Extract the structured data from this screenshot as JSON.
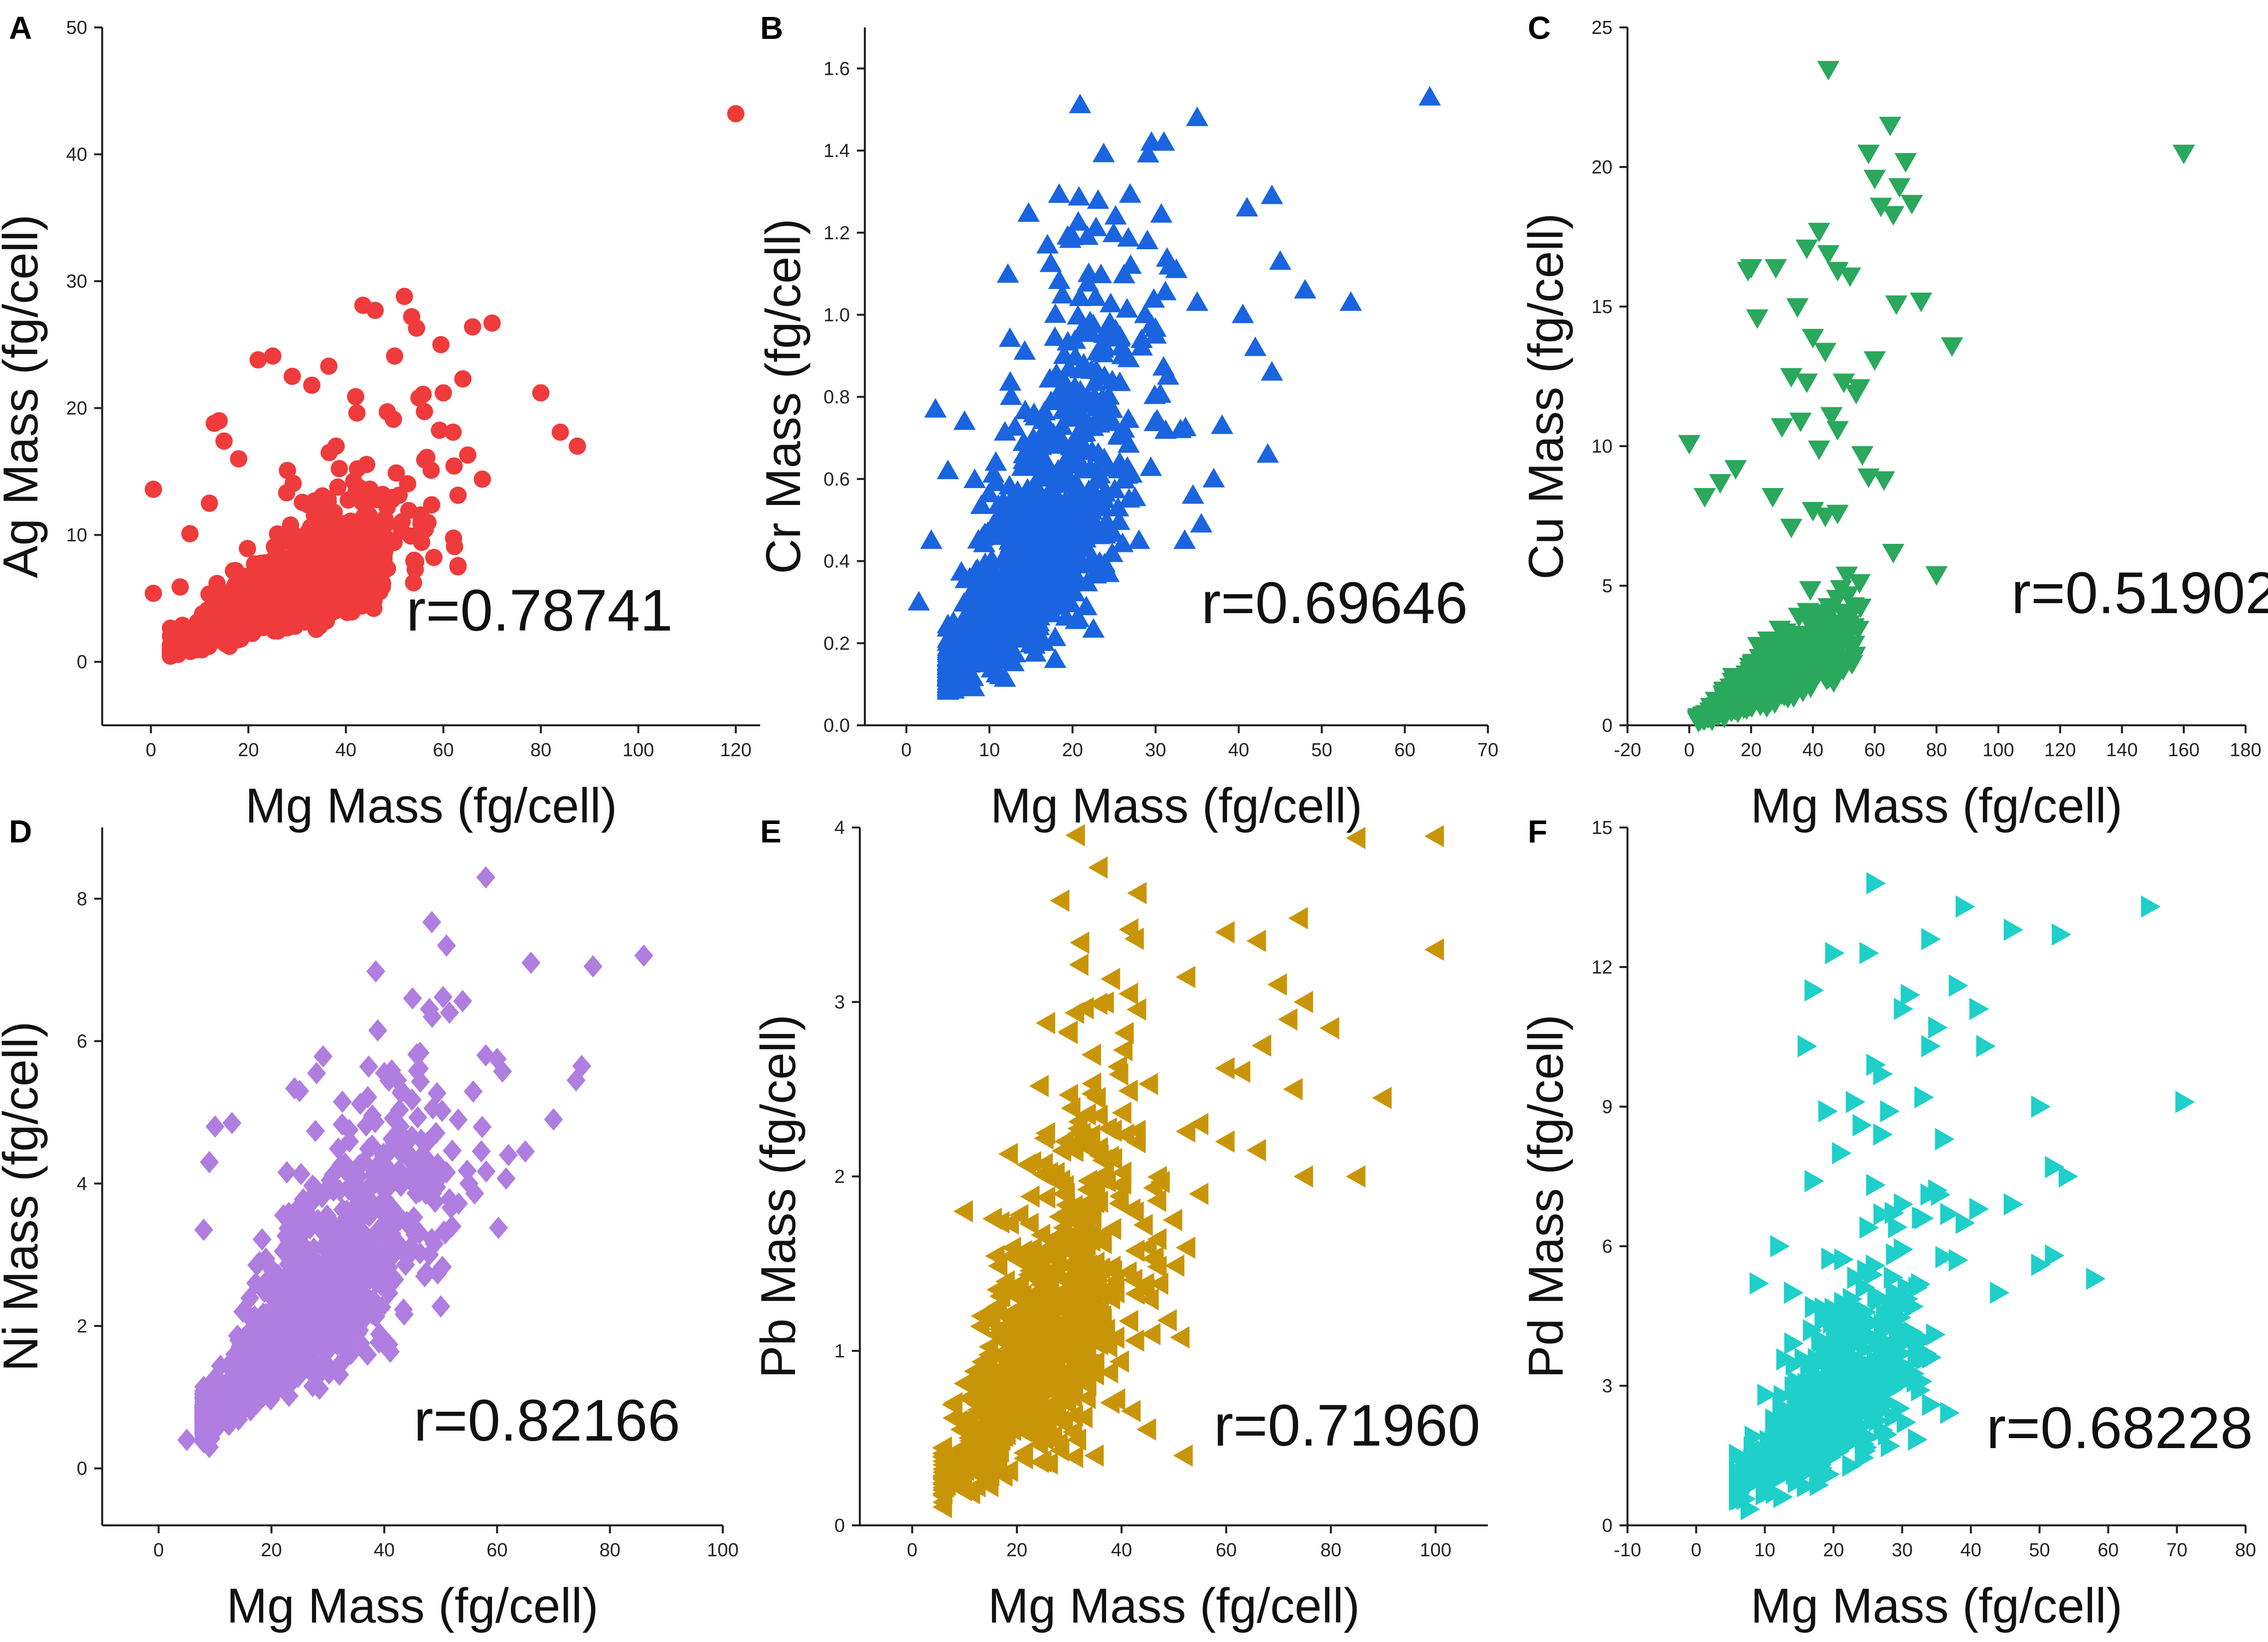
{
  "chart_data": [
    {
      "panel": "A",
      "type": "scatter",
      "marker": "circle",
      "color": "#ef3b3b",
      "xlabel": "Mg Mass (fg/cell)",
      "ylabel": "Ag Mass (fg/cell)",
      "annotation": "r=0.78741",
      "xlim": [
        -10,
        125
      ],
      "ylim": [
        -5,
        50
      ],
      "xticks": [
        0,
        20,
        40,
        60,
        80,
        100,
        120
      ],
      "yticks": [
        0,
        10,
        20,
        30,
        40,
        50
      ],
      "n_points": 1100,
      "slope": 0.2,
      "noise": 0.32,
      "x_range": [
        4,
        60
      ],
      "x_center": 25,
      "seed": 11,
      "points": [
        [
          120,
          43.2
        ],
        [
          87.5,
          17
        ],
        [
          80,
          21.2
        ],
        [
          70,
          26.7
        ],
        [
          66,
          26.4
        ],
        [
          64,
          22.3
        ],
        [
          62,
          18.1
        ],
        [
          59.5,
          25
        ],
        [
          57.5,
          15.1
        ],
        [
          54.5,
          26.3
        ],
        [
          52,
          28.8
        ],
        [
          53.5,
          27.2
        ],
        [
          50,
          24.1
        ],
        [
          48.5,
          19.7
        ],
        [
          43.5,
          28.1
        ],
        [
          46,
          27.7
        ],
        [
          36.5,
          23.3
        ],
        [
          33,
          21.8
        ],
        [
          29,
          22.5
        ],
        [
          25,
          24.1
        ],
        [
          22,
          23.8
        ],
        [
          18,
          16
        ],
        [
          14,
          19
        ],
        [
          13,
          18.8
        ],
        [
          15,
          17.4
        ],
        [
          0.5,
          13.6
        ],
        [
          0.5,
          5.4
        ],
        [
          6,
          5.9
        ],
        [
          8,
          10.1
        ],
        [
          12,
          12.5
        ],
        [
          68,
          14.4
        ],
        [
          84,
          18.1
        ],
        [
          42,
          20.9
        ],
        [
          38,
          17
        ],
        [
          55,
          20.8
        ],
        [
          60,
          21.2
        ],
        [
          65,
          16.3
        ]
      ]
    },
    {
      "panel": "B",
      "type": "scatter",
      "marker": "triangle-up",
      "color": "#1a64e0",
      "xlabel": "Mg Mass (fg/cell)",
      "ylabel": "Cr Mass (fg/cell)",
      "annotation": "r=0.69646",
      "xlim": [
        -5,
        70
      ],
      "ylim": [
        0,
        1.7
      ],
      "xticks": [
        0,
        10,
        20,
        30,
        40,
        50,
        60,
        70
      ],
      "yticks": [
        0.0,
        0.2,
        0.4,
        0.6,
        0.8,
        1.0,
        1.2,
        1.4,
        1.6
      ],
      "n_points": 800,
      "slope": 0.028,
      "noise": 0.36,
      "x_range": [
        5,
        32
      ],
      "x_center": 15,
      "seed": 23,
      "points": [
        [
          63,
          1.53
        ],
        [
          35,
          1.48
        ],
        [
          31,
          1.42
        ],
        [
          29.5,
          1.42
        ],
        [
          41,
          1.26
        ],
        [
          44,
          1.29
        ],
        [
          45,
          1.13
        ],
        [
          48,
          1.06
        ],
        [
          53.5,
          1.03
        ],
        [
          44,
          0.86
        ],
        [
          43.5,
          0.66
        ],
        [
          42,
          0.92
        ],
        [
          40.5,
          1.0
        ],
        [
          38,
          0.73
        ],
        [
          37,
          0.6
        ],
        [
          35.5,
          0.49
        ],
        [
          34.5,
          0.56
        ],
        [
          33.5,
          0.45
        ],
        [
          35,
          1.03
        ],
        [
          32.5,
          1.11
        ],
        [
          29,
          1.18
        ],
        [
          27,
          1.12
        ],
        [
          21,
          0.76
        ],
        [
          24.5,
          0.98
        ],
        [
          20,
          1.19
        ],
        [
          3.5,
          0.77
        ],
        [
          1.5,
          0.3
        ],
        [
          3,
          0.45
        ],
        [
          5,
          0.62
        ],
        [
          7,
          0.74
        ],
        [
          26,
          0.9
        ],
        [
          30,
          0.95
        ],
        [
          31.5,
          0.85
        ],
        [
          33,
          0.72
        ],
        [
          28,
          0.45
        ]
      ]
    },
    {
      "panel": "C",
      "type": "scatter",
      "marker": "triangle-down",
      "color": "#2aa85c",
      "xlabel": "Mg Mass (fg/cell)",
      "ylabel": "Cu Mass (fg/cell)",
      "annotation": "r=0.51902",
      "xlim": [
        -20,
        180
      ],
      "ylim": [
        0,
        25
      ],
      "xticks": [
        -20,
        0,
        20,
        40,
        60,
        80,
        100,
        120,
        140,
        160,
        180
      ],
      "yticks": [
        0,
        5,
        10,
        15,
        20,
        25
      ],
      "n_points": 700,
      "slope": 0.062,
      "noise": 0.3,
      "x_range": [
        3,
        55
      ],
      "x_center": 25,
      "seed": 37,
      "points": [
        [
          160,
          20.5
        ],
        [
          45,
          23.5
        ],
        [
          65,
          21.5
        ],
        [
          58,
          20.5
        ],
        [
          60,
          19.6
        ],
        [
          70,
          20.2
        ],
        [
          68,
          19.3
        ],
        [
          66,
          18.3
        ],
        [
          62,
          18.6
        ],
        [
          72,
          18.7
        ],
        [
          42,
          17.7
        ],
        [
          38,
          17.1
        ],
        [
          45,
          16.9
        ],
        [
          20,
          16.4
        ],
        [
          19,
          16.3
        ],
        [
          48,
          16.3
        ],
        [
          52,
          16.1
        ],
        [
          67,
          15.1
        ],
        [
          35,
          15
        ],
        [
          40,
          13.9
        ],
        [
          44,
          13.4
        ],
        [
          33,
          12.5
        ],
        [
          38,
          12.3
        ],
        [
          50,
          12.3
        ],
        [
          54,
          11.9
        ],
        [
          46,
          11.1
        ],
        [
          48,
          10.6
        ],
        [
          30,
          10.7
        ],
        [
          36,
          10.9
        ],
        [
          42,
          9.9
        ],
        [
          0,
          10.1
        ],
        [
          15,
          9.2
        ],
        [
          10,
          8.7
        ],
        [
          5,
          8.2
        ],
        [
          58,
          8.9
        ],
        [
          63,
          8.8
        ],
        [
          27,
          8.2
        ],
        [
          33,
          7.1
        ],
        [
          40,
          7.7
        ],
        [
          44,
          7.5
        ],
        [
          48,
          7.6
        ],
        [
          85,
          13.6
        ],
        [
          75,
          15.2
        ],
        [
          60,
          13.1
        ],
        [
          56,
          9.7
        ],
        [
          80,
          5.4
        ],
        [
          66,
          6.2
        ],
        [
          22,
          14.6
        ],
        [
          28,
          16.4
        ],
        [
          55,
          12.1
        ]
      ]
    },
    {
      "panel": "D",
      "type": "scatter",
      "marker": "diamond",
      "color": "#b07de0",
      "xlabel": "Mg Mass (fg/cell)",
      "ylabel": "Ni Mass (fg/cell)",
      "annotation": "r=0.82166",
      "xlim": [
        -10,
        100
      ],
      "ylim": [
        -0.8,
        9
      ],
      "xticks": [
        0,
        20,
        40,
        60,
        80,
        100
      ],
      "yticks": [
        0,
        2,
        4,
        6,
        8
      ],
      "n_points": 1200,
      "slope": 0.085,
      "noise": 0.27,
      "x_range": [
        8,
        60
      ],
      "x_center": 25,
      "seed": 41,
      "points": [
        [
          58,
          8.3
        ],
        [
          86,
          7.2
        ],
        [
          77,
          7.05
        ],
        [
          66,
          7.1
        ],
        [
          75,
          5.65
        ],
        [
          74,
          5.45
        ],
        [
          58,
          5.8
        ],
        [
          60,
          5.75
        ],
        [
          45,
          6.6
        ],
        [
          48,
          6.45
        ],
        [
          28,
          5.55
        ],
        [
          25,
          5.3
        ],
        [
          70,
          4.9
        ],
        [
          65,
          4.45
        ],
        [
          62,
          4.4
        ],
        [
          13,
          4.85
        ],
        [
          10,
          4.8
        ],
        [
          9,
          4.3
        ],
        [
          8,
          3.35
        ],
        [
          5,
          0.4
        ],
        [
          9,
          0.3
        ],
        [
          55,
          4.0
        ],
        [
          52,
          3.4
        ],
        [
          48,
          3.0
        ]
      ]
    },
    {
      "panel": "E",
      "type": "scatter",
      "marker": "triangle-left",
      "color": "#c99508",
      "xlabel": "Mg Mass (fg/cell)",
      "ylabel": "Pb Mass (fg/cell)",
      "annotation": "r=0.71960",
      "xlim": [
        -10,
        110
      ],
      "ylim": [
        0,
        4
      ],
      "xticks": [
        0,
        20,
        40,
        60,
        80,
        100
      ],
      "yticks": [
        0,
        1,
        2,
        3,
        4
      ],
      "n_points": 800,
      "slope": 0.042,
      "noise": 0.4,
      "x_range": [
        6,
        50
      ],
      "x_center": 25,
      "seed": 53,
      "points": [
        [
          100,
          3.95
        ],
        [
          85,
          3.94
        ],
        [
          100,
          3.3
        ],
        [
          74,
          3.48
        ],
        [
          66,
          3.35
        ],
        [
          60,
          3.4
        ],
        [
          70,
          3.1
        ],
        [
          75,
          3.0
        ],
        [
          72,
          2.9
        ],
        [
          80,
          2.85
        ],
        [
          67,
          2.75
        ],
        [
          30,
          2.83
        ],
        [
          60,
          2.62
        ],
        [
          63,
          2.6
        ],
        [
          90,
          2.45
        ],
        [
          85,
          2.0
        ],
        [
          75,
          2.0
        ],
        [
          66,
          2.15
        ],
        [
          73,
          2.5
        ],
        [
          55,
          2.3
        ],
        [
          60,
          2.2
        ],
        [
          55,
          1.9
        ],
        [
          50,
          1.75
        ],
        [
          52,
          0.4
        ],
        [
          45,
          0.55
        ],
        [
          35,
          0.4
        ],
        [
          8,
          0.7
        ],
        [
          10,
          1.8
        ]
      ]
    },
    {
      "panel": "F",
      "type": "scatter",
      "marker": "triangle-right",
      "color": "#1ecfca",
      "xlabel": "Mg Mass (fg/cell)",
      "ylabel": "Pd Mass (fg/cell)",
      "annotation": "r=0.68228",
      "xlim": [
        -10,
        80
      ],
      "ylim": [
        0,
        15
      ],
      "xticks": [
        -10,
        0,
        10,
        20,
        30,
        40,
        50,
        60,
        70,
        80
      ],
      "yticks": [
        0,
        3,
        6,
        9,
        12,
        15
      ],
      "n_points": 650,
      "slope": 0.125,
      "noise": 0.3,
      "x_range": [
        6,
        35
      ],
      "x_center": 18,
      "seed": 67,
      "points": [
        [
          26,
          13.8
        ],
        [
          66,
          13.3
        ],
        [
          39,
          13.3
        ],
        [
          46,
          12.8
        ],
        [
          53,
          12.7
        ],
        [
          34,
          12.6
        ],
        [
          20,
          12.3
        ],
        [
          25,
          12.3
        ],
        [
          31,
          11.4
        ],
        [
          38,
          11.6
        ],
        [
          17,
          11.5
        ],
        [
          30,
          11.1
        ],
        [
          35,
          10.7
        ],
        [
          41,
          11.1
        ],
        [
          34,
          10.3
        ],
        [
          42,
          10.3
        ],
        [
          16,
          10.3
        ],
        [
          33,
          9.2
        ],
        [
          26,
          9.9
        ],
        [
          27,
          9.7
        ],
        [
          71,
          9.1
        ],
        [
          50,
          9.0
        ],
        [
          19,
          8.9
        ],
        [
          23,
          9.1
        ],
        [
          24,
          8.6
        ],
        [
          27,
          8.4
        ],
        [
          21,
          8.0
        ],
        [
          17,
          7.4
        ],
        [
          52,
          7.7
        ],
        [
          54,
          7.5
        ],
        [
          30,
          6.9
        ],
        [
          35,
          7.2
        ],
        [
          41,
          6.8
        ],
        [
          46,
          6.9
        ],
        [
          12,
          6.0
        ],
        [
          50,
          5.6
        ],
        [
          58,
          5.3
        ],
        [
          52,
          5.8
        ],
        [
          44,
          5.0
        ],
        [
          38,
          5.7
        ],
        [
          28,
          8.9
        ],
        [
          36,
          8.3
        ],
        [
          33,
          6.6
        ],
        [
          9,
          5.2
        ],
        [
          14,
          5.0
        ],
        [
          25,
          6.4
        ],
        [
          30,
          4.7
        ],
        [
          39,
          6.5
        ]
      ]
    }
  ]
}
